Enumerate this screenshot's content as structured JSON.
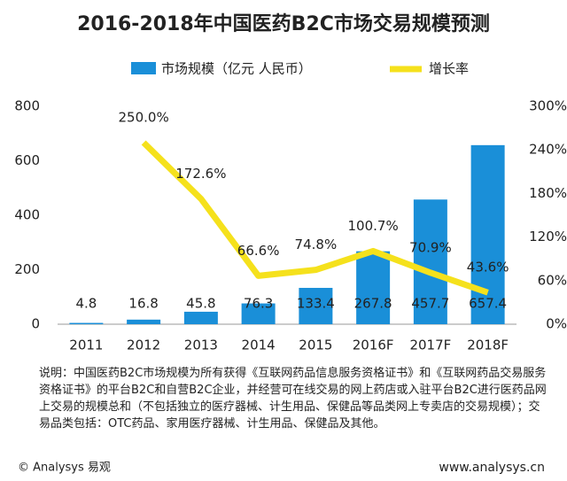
{
  "chart_data": {
    "type": "bar-line",
    "title": "2016-2018年中国医药B2C市场交易规模预测",
    "categories": [
      "2011",
      "2012",
      "2013",
      "2014",
      "2015",
      "2016F",
      "2017F",
      "2018F"
    ],
    "series": [
      {
        "name": "市场规模（亿元 人民币）",
        "color": "#1a8fd8",
        "type": "bar",
        "values": [
          4.8,
          16.8,
          45.8,
          76.3,
          133.4,
          267.8,
          457.7,
          657.4
        ]
      },
      {
        "name": "增长率",
        "color": "#f5e11c",
        "type": "line",
        "axis": "y2",
        "values": [
          null,
          250.0,
          172.6,
          66.6,
          74.8,
          100.7,
          70.9,
          43.6
        ],
        "value_labels": [
          null,
          "250.0%",
          "172.6%",
          "66.6%",
          "74.8%",
          "100.7%",
          "70.9%",
          "43.6%"
        ]
      }
    ],
    "ylim": [
      0,
      800
    ],
    "yticks": [
      0,
      200,
      400,
      600,
      800
    ],
    "y2lim": [
      0,
      300
    ],
    "y2ticks": [
      {
        "value": 0,
        "label": "0%"
      },
      {
        "value": 60,
        "label": "60%"
      },
      {
        "value": 120,
        "label": "120%"
      },
      {
        "value": 180,
        "label": "180%"
      },
      {
        "value": 240,
        "label": "240%"
      },
      {
        "value": 300,
        "label": "300%"
      }
    ],
    "note": "说明：中国医药B2C市场规模为所有获得《互联网药品信息服务资格证书》和《互联网药品交易服务资格证书》的平台B2C和自营B2C企业，并经营可在线交易的网上药店或入驻平台B2C进行医药品网上交易的规模总和（不包括独立的医疗器械、计生用品、保健品等品类网上专卖店的交易规模）；交易品类包括：OTC药品、家用医疗器械、计生用品、保健品及其他。",
    "source": "© Analysys 易观",
    "website": "www.analysys.cn"
  }
}
